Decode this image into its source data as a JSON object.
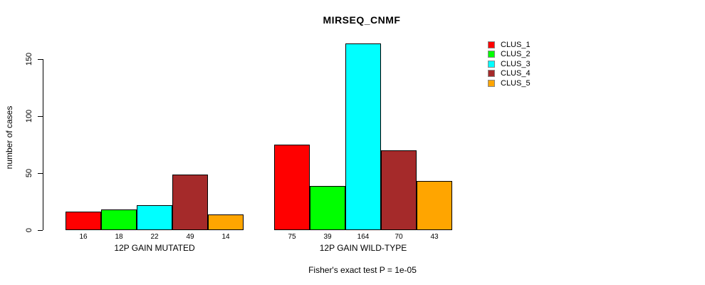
{
  "chart_data": {
    "type": "bar",
    "title": "MIRSEQ_CNMF",
    "ylabel": "number of cases",
    "xlabel": "",
    "caption": "Fisher's exact test P = 1e-05",
    "ylim": [
      0,
      164
    ],
    "yticks": [
      0,
      50,
      100,
      150
    ],
    "grid": false,
    "legend_position": "right",
    "categories": [
      "12P GAIN MUTATED",
      "12P GAIN WILD-TYPE"
    ],
    "series": [
      {
        "name": "CLUS_1",
        "color": "#FF0000",
        "values": [
          16,
          75
        ]
      },
      {
        "name": "CLUS_2",
        "color": "#00FF00",
        "values": [
          18,
          39
        ]
      },
      {
        "name": "CLUS_3",
        "color": "#00FFFF",
        "values": [
          22,
          164
        ]
      },
      {
        "name": "CLUS_4",
        "color": "#A52A2A",
        "values": [
          49,
          70
        ]
      },
      {
        "name": "CLUS_5",
        "color": "#FFA500",
        "values": [
          14,
          43
        ]
      }
    ]
  }
}
